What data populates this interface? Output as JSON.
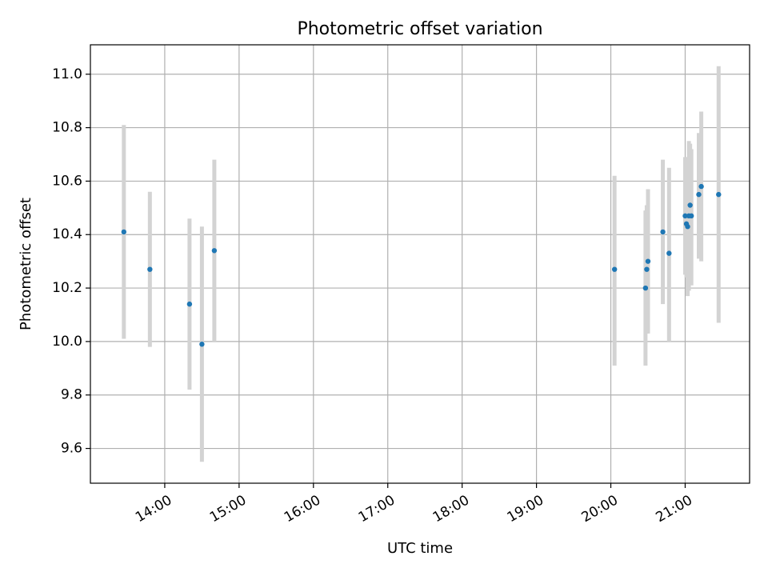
{
  "chart_data": {
    "type": "scatter",
    "title": "Photometric offset variation",
    "xlabel": "UTC time",
    "ylabel": "Photometric offset",
    "x_unit": "UTC time (HH:MM)",
    "xlim": [
      "13:00",
      "21:52"
    ],
    "ylim": [
      9.47,
      11.11
    ],
    "xticks": [
      "14:00",
      "15:00",
      "16:00",
      "17:00",
      "18:00",
      "19:00",
      "20:00",
      "21:00"
    ],
    "yticks": [
      "9.6",
      "9.8",
      "10.0",
      "10.2",
      "10.4",
      "10.6",
      "10.8",
      "11.0"
    ],
    "grid": true,
    "marker_color": "#1f77b4",
    "errorbar_color": "#d3d3d3",
    "series": [
      {
        "points": [
          {
            "x": "13:27",
            "y": 10.41,
            "ylo": 10.01,
            "yhi": 10.81
          },
          {
            "x": "13:48",
            "y": 10.27,
            "ylo": 9.98,
            "yhi": 10.56
          },
          {
            "x": "14:20",
            "y": 10.14,
            "ylo": 9.82,
            "yhi": 10.46
          },
          {
            "x": "14:30",
            "y": 9.99,
            "ylo": 9.55,
            "yhi": 10.43
          },
          {
            "x": "14:40",
            "y": 10.34,
            "ylo": 10.0,
            "yhi": 10.68
          },
          {
            "x": "20:03",
            "y": 10.27,
            "ylo": 9.91,
            "yhi": 10.62
          },
          {
            "x": "20:28",
            "y": 10.2,
            "ylo": 9.91,
            "yhi": 10.49
          },
          {
            "x": "20:29",
            "y": 10.27,
            "ylo": 10.03,
            "yhi": 10.51
          },
          {
            "x": "20:30",
            "y": 10.3,
            "ylo": 10.03,
            "yhi": 10.57
          },
          {
            "x": "20:42",
            "y": 10.41,
            "ylo": 10.14,
            "yhi": 10.68
          },
          {
            "x": "20:47",
            "y": 10.33,
            "ylo": 10.0,
            "yhi": 10.65
          },
          {
            "x": "21:00",
            "y": 10.47,
            "ylo": 10.25,
            "yhi": 10.69
          },
          {
            "x": "21:01",
            "y": 10.44,
            "ylo": 10.24,
            "yhi": 10.64
          },
          {
            "x": "21:02",
            "y": 10.43,
            "ylo": 10.17,
            "yhi": 10.69
          },
          {
            "x": "21:03",
            "y": 10.47,
            "ylo": 10.19,
            "yhi": 10.75
          },
          {
            "x": "21:04",
            "y": 10.51,
            "ylo": 10.28,
            "yhi": 10.74
          },
          {
            "x": "21:05",
            "y": 10.47,
            "ylo": 10.21,
            "yhi": 10.72
          },
          {
            "x": "21:11",
            "y": 10.55,
            "ylo": 10.31,
            "yhi": 10.78
          },
          {
            "x": "21:13",
            "y": 10.58,
            "ylo": 10.3,
            "yhi": 10.86
          },
          {
            "x": "21:27",
            "y": 10.55,
            "ylo": 10.07,
            "yhi": 11.03
          }
        ]
      }
    ]
  }
}
